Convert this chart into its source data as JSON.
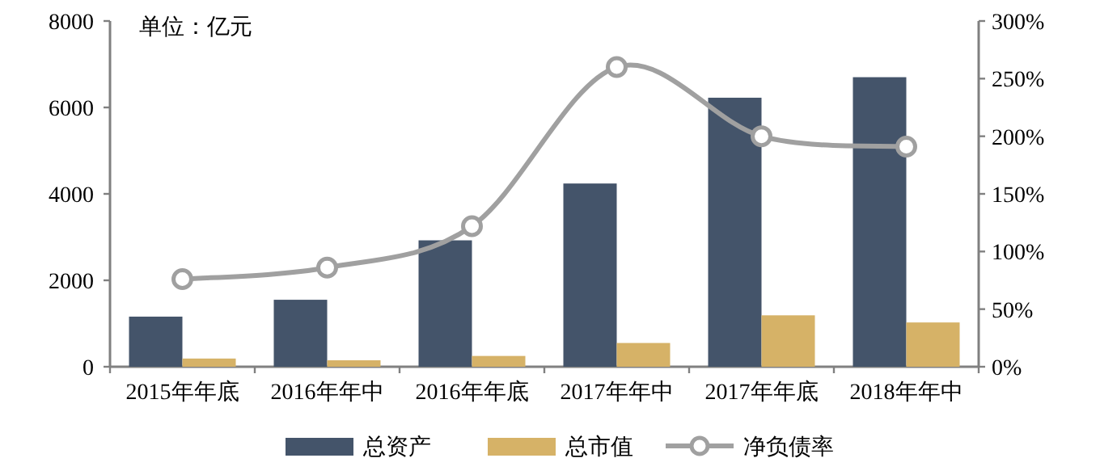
{
  "chart_data": {
    "type": "bar",
    "categories": [
      "2015年年底",
      "2016年年中",
      "2016年年底",
      "2017年年中",
      "2017年年底",
      "2018年年中"
    ],
    "series": [
      {
        "name": "总资产",
        "color": "#44546a",
        "values": [
          1160,
          1550,
          2925,
          4240,
          6225,
          6700
        ]
      },
      {
        "name": "总市值",
        "color": "#d6b267",
        "values": [
          190,
          150,
          250,
          550,
          1190,
          1025
        ]
      },
      {
        "name": "净负债率",
        "color": "#a0a0a0",
        "type": "line",
        "axis": "y2",
        "marker": "circle",
        "values": [
          76,
          86,
          122,
          260,
          200,
          191
        ]
      }
    ],
    "ylim": [
      0,
      8000
    ],
    "yticks": [
      0,
      2000,
      4000,
      6000,
      8000
    ],
    "y2lim": [
      0,
      300
    ],
    "y2ticks": [
      {
        "value": 0,
        "label": "0%"
      },
      {
        "value": 50,
        "label": "50%"
      },
      {
        "value": 100,
        "label": "100%"
      },
      {
        "value": 150,
        "label": "150%"
      },
      {
        "value": 200,
        "label": "200%"
      },
      {
        "value": 250,
        "label": "250%"
      },
      {
        "value": 300,
        "label": "300%"
      }
    ],
    "legend": "bottom",
    "annotations": [
      "单位：亿元"
    ]
  }
}
